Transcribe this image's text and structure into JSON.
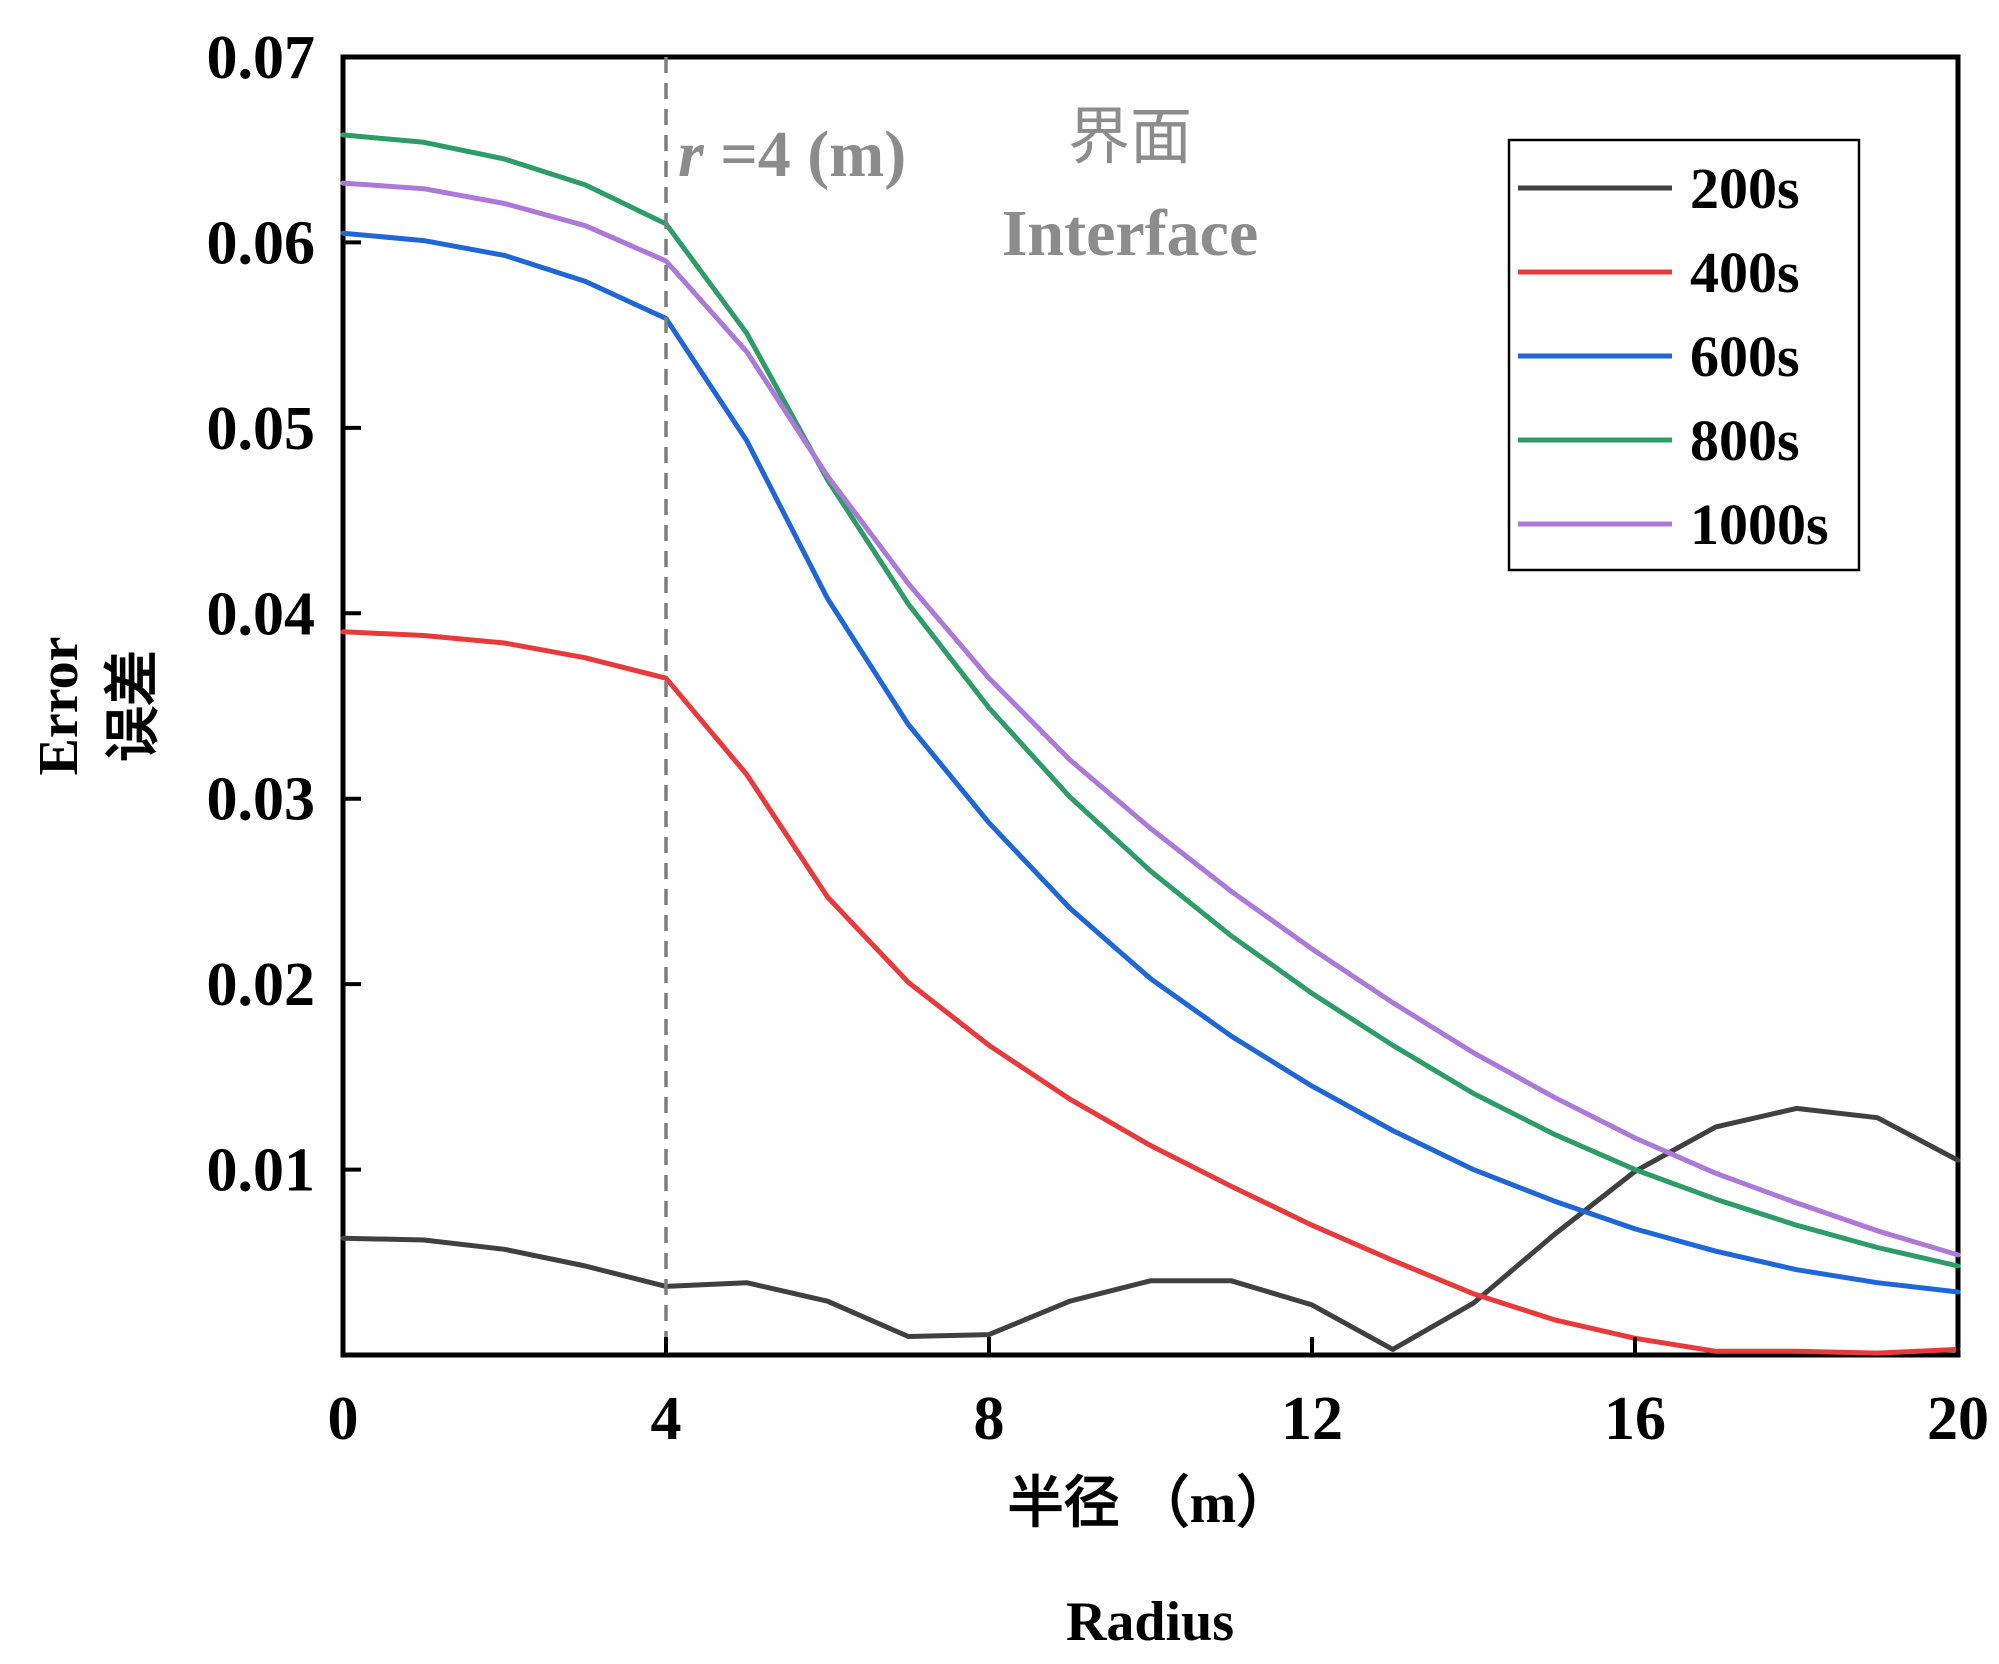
{
  "chart_data": {
    "type": "line",
    "title": "",
    "xlabel_cn": "半径 （m）",
    "xlabel_en": "Radius",
    "ylabel_en": "Error",
    "ylabel_cn": "误差",
    "xlim": [
      0,
      20
    ],
    "ylim": [
      0,
      0.07
    ],
    "xticks": [
      0,
      4,
      8,
      12,
      16,
      20
    ],
    "xtick_labels": [
      "0",
      "4",
      "8",
      "12",
      "16",
      "20"
    ],
    "yticks": [
      0.01,
      0.02,
      0.03,
      0.04,
      0.05,
      0.06,
      0.07
    ],
    "ytick_labels": [
      "0.01",
      "0.02",
      "0.03",
      "0.04",
      "0.05",
      "0.06",
      "0.07"
    ],
    "grid": false,
    "legend_position": "top-right",
    "x": [
      0,
      1,
      2,
      3,
      4,
      5,
      6,
      7,
      8,
      9,
      10,
      11,
      12,
      13,
      14,
      15,
      16,
      17,
      18,
      19,
      20
    ],
    "series": [
      {
        "name": "200s",
        "color": "#404040",
        "values": [
          0.0063,
          0.0062,
          0.0057,
          0.0048,
          0.0037,
          0.0039,
          0.0029,
          0.001,
          0.0011,
          0.0029,
          0.004,
          0.004,
          0.0027,
          0.0003,
          0.0028,
          0.0065,
          0.0099,
          0.0123,
          0.0133,
          0.0128,
          0.0105
        ]
      },
      {
        "name": "400s",
        "color": "#e8393b",
        "values": [
          0.039,
          0.0388,
          0.0384,
          0.0376,
          0.0365,
          0.0313,
          0.0247,
          0.0201,
          0.0167,
          0.0138,
          0.0113,
          0.0091,
          0.007,
          0.0051,
          0.0033,
          0.0019,
          0.0009,
          0.0002,
          0.0002,
          0.0001,
          0.0003
        ]
      },
      {
        "name": "600s",
        "color": "#1f66d6",
        "values": [
          0.0605,
          0.0601,
          0.0593,
          0.0579,
          0.0559,
          0.0493,
          0.0408,
          0.034,
          0.0287,
          0.0241,
          0.0203,
          0.0172,
          0.0145,
          0.0121,
          0.01,
          0.0083,
          0.0068,
          0.0056,
          0.0046,
          0.0039,
          0.0034
        ]
      },
      {
        "name": "800s",
        "color": "#2e9c66",
        "values": [
          0.0658,
          0.0654,
          0.0645,
          0.0631,
          0.061,
          0.0551,
          0.0472,
          0.0405,
          0.0349,
          0.0301,
          0.0261,
          0.0226,
          0.0195,
          0.0167,
          0.0141,
          0.0119,
          0.01,
          0.0084,
          0.007,
          0.0058,
          0.0048
        ]
      },
      {
        "name": "1000s",
        "color": "#ad79d9",
        "values": [
          0.0632,
          0.0629,
          0.0621,
          0.0609,
          0.059,
          0.0541,
          0.0474,
          0.0416,
          0.0365,
          0.0321,
          0.0284,
          0.025,
          0.0219,
          0.019,
          0.0163,
          0.0139,
          0.0117,
          0.0098,
          0.0082,
          0.0067,
          0.0054
        ]
      }
    ],
    "annotations": {
      "interface_line_x": 4,
      "interface_label": "r =4 (m)",
      "interface_label_var": "r",
      "interface_label_rest": " =4 (m)",
      "interface_cn": "界面",
      "interface_en": "Interface"
    }
  }
}
